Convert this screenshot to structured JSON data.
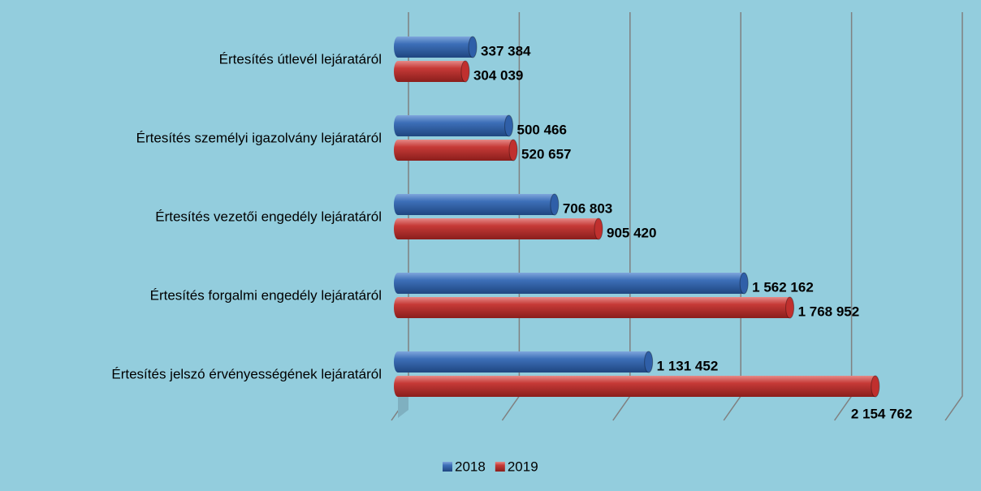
{
  "chart_data": {
    "type": "bar",
    "orientation": "horizontal",
    "categories": [
      "Értesítés útlevél lejáratáról",
      "Értesítés személyi igazolvány lejáratáról",
      "Értesítés vezetői engedély lejáratáról",
      "Értesítés forgalmi engedély lejáratáról",
      "Értesítés jelszó érvényességének lejáratáról"
    ],
    "series": [
      {
        "name": "2018",
        "color": "#2f5fa8",
        "values": [
          337384,
          500466,
          706803,
          1562162,
          1131452
        ],
        "value_labels": [
          "337 384",
          "500 466",
          "706 803",
          "1 562 162",
          "1 131 452"
        ]
      },
      {
        "name": "2019",
        "color": "#c0302e",
        "values": [
          304039,
          520657,
          905420,
          1768952,
          2154762
        ],
        "value_labels": [
          "304 039",
          "520 657",
          "905 420",
          "1 768 952",
          "2 154 762"
        ]
      }
    ],
    "xlim": [
      0,
      2500000
    ],
    "xticks": [
      0,
      500000,
      1000000,
      1500000,
      2000000,
      2500000
    ],
    "grid": true,
    "legend": "bottom"
  }
}
